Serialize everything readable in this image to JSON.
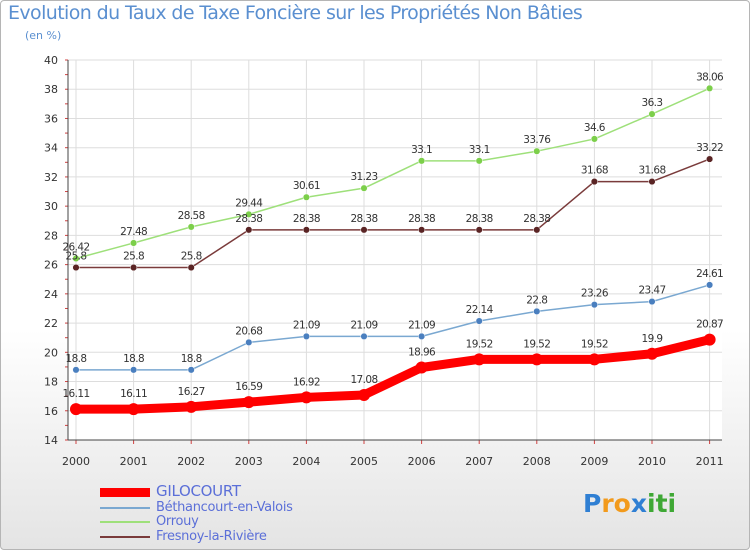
{
  "title": "Evolution du Taux de Taxe Foncière sur les Propriétés Non Bâties",
  "unit": "(en %)",
  "logo": {
    "text": [
      "P",
      "r",
      "o",
      "x",
      "i",
      "t",
      "i"
    ],
    "colors": [
      "#2f7fd3",
      "#f29a1c",
      "#f29a1c",
      "#2f7fd3",
      "#3fa835",
      "#3fa835",
      "#3fa835"
    ]
  },
  "chart_data": {
    "type": "line",
    "x": [
      2000,
      2001,
      2002,
      2003,
      2004,
      2005,
      2006,
      2007,
      2008,
      2009,
      2010,
      2011
    ],
    "ylim": [
      14,
      40
    ],
    "yticks": [
      14,
      16,
      18,
      20,
      22,
      24,
      26,
      28,
      30,
      32,
      34,
      36,
      38,
      40
    ],
    "grid": true,
    "legend_position": "bottom-left",
    "series": [
      {
        "name": "GILOCOURT",
        "color": "#ff0000",
        "point_color": "#ff0000",
        "labels": [
          "16.11",
          "16.11",
          "16.27",
          "16.59",
          "16.92",
          "17.08",
          "18.96",
          "19.52",
          "19.52",
          "19.52",
          "19.9",
          "20.87"
        ],
        "values": [
          16.11,
          16.11,
          16.27,
          16.59,
          16.92,
          17.08,
          18.96,
          19.52,
          19.52,
          19.52,
          19.9,
          20.87
        ]
      },
      {
        "name": "Béthancourt-en-Valois",
        "color": "#7aa8d1",
        "point_color": "#4a7fbf",
        "labels": [
          "18.8",
          "18.8",
          "18.8",
          "20.68",
          "21.09",
          "21.09",
          "21.09",
          "22.14",
          "22.8",
          "23.26",
          "23.47",
          "24.61"
        ],
        "values": [
          18.8,
          18.8,
          18.8,
          20.68,
          21.09,
          21.09,
          21.09,
          22.14,
          22.8,
          23.26,
          23.47,
          24.61
        ]
      },
      {
        "name": "Orrouy",
        "color": "#9ee07a",
        "point_color": "#7ccf4a",
        "labels": [
          "26.42",
          "27.48",
          "28.58",
          "29.44",
          "30.61",
          "31.23",
          "33.1",
          "33.1",
          "33.76",
          "34.6",
          "36.3",
          "38.06"
        ],
        "values": [
          26.42,
          27.48,
          28.58,
          29.44,
          30.61,
          31.23,
          33.1,
          33.1,
          33.76,
          34.6,
          36.3,
          38.06
        ]
      },
      {
        "name": "Fresnoy-la-Rivière",
        "color": "#7a3b3b",
        "point_color": "#5a2424",
        "labels": [
          "25.8",
          "25.8",
          "25.8",
          "28.38",
          "28.38",
          "28.38",
          "28.38",
          "28.38",
          "28.38",
          "31.68",
          "31.68",
          "33.22"
        ],
        "values": [
          25.8,
          25.8,
          25.8,
          28.38,
          28.38,
          28.38,
          28.38,
          28.38,
          28.38,
          31.68,
          31.68,
          33.22
        ]
      }
    ]
  }
}
